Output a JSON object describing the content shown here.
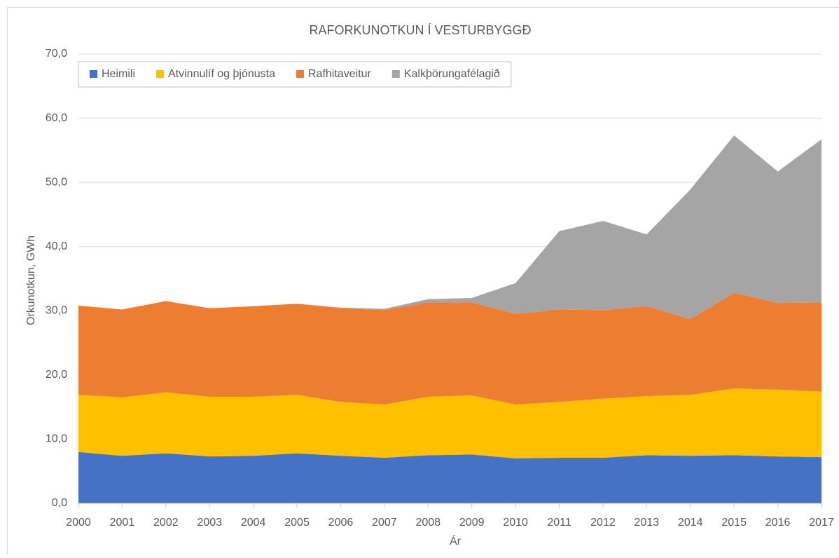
{
  "chart_data": {
    "type": "stacked-area",
    "title": "RAFORKUNOTKUN Í VESTURBYGGÐ",
    "x_label": "Ár",
    "y_label": "Orkunotkun, GWh",
    "categories": [
      "2000",
      "2001",
      "2002",
      "2003",
      "2004",
      "2005",
      "2006",
      "2007",
      "2008",
      "2009",
      "2010",
      "2011",
      "2012",
      "2013",
      "2014",
      "2015",
      "2016",
      "2017"
    ],
    "series": [
      {
        "name": "Heimili",
        "color": "#4472c4",
        "values": [
          8.0,
          7.4,
          7.8,
          7.3,
          7.4,
          7.8,
          7.4,
          7.1,
          7.5,
          7.6,
          7.0,
          7.1,
          7.1,
          7.5,
          7.4,
          7.5,
          7.3,
          7.2
        ]
      },
      {
        "name": "Atvinnulíf og þjónusta",
        "color": "#ffc000",
        "values": [
          8.9,
          9.1,
          9.5,
          9.3,
          9.2,
          9.1,
          8.4,
          8.3,
          9.1,
          9.2,
          8.4,
          8.7,
          9.2,
          9.2,
          9.5,
          10.4,
          10.4,
          10.2
        ]
      },
      {
        "name": "Rafhitaveitur",
        "color": "#ed7d31",
        "values": [
          13.9,
          13.7,
          14.2,
          13.8,
          14.1,
          14.2,
          14.6,
          14.7,
          14.7,
          14.5,
          14.1,
          14.4,
          13.8,
          14.0,
          11.8,
          14.9,
          13.5,
          13.9
        ]
      },
      {
        "name": "Kalkþörungafélagið",
        "color": "#a5a5a5",
        "values": [
          0,
          0,
          0,
          0,
          0,
          0,
          0.1,
          0.2,
          0.5,
          0.7,
          4.8,
          12.2,
          13.9,
          11.2,
          20.2,
          24.5,
          20.5,
          25.4
        ]
      }
    ],
    "ylim": [
      0,
      70
    ],
    "yticks": [
      {
        "value": 0,
        "label": "0,0"
      },
      {
        "value": 10,
        "label": "10,0"
      },
      {
        "value": 20,
        "label": "20,0"
      },
      {
        "value": 30,
        "label": "30,0"
      },
      {
        "value": 40,
        "label": "40,0"
      },
      {
        "value": 50,
        "label": "50,0"
      },
      {
        "value": 60,
        "label": "60,0"
      },
      {
        "value": 70,
        "label": "70,0"
      }
    ],
    "grid": true,
    "legend": "top"
  }
}
